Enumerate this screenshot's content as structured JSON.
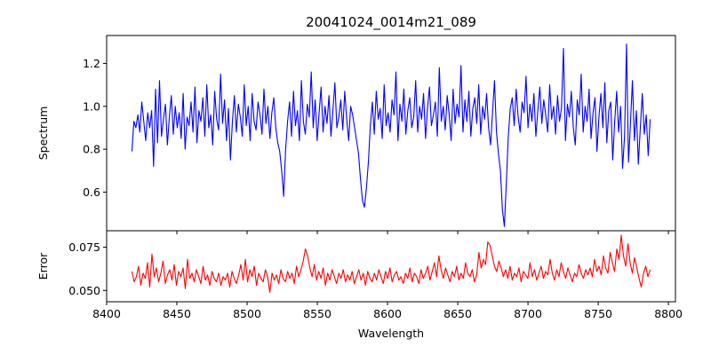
{
  "figure": {
    "title": "20041024_0014m21_089"
  },
  "chart_data": [
    {
      "type": "line",
      "panel": "top",
      "title": "20041024_0014m21_089",
      "xlabel": "",
      "ylabel": "Spectrum",
      "xlim": [
        8400,
        8805
      ],
      "ylim": [
        0.42,
        1.33
      ],
      "x_ticks": [
        8400,
        8450,
        8500,
        8550,
        8600,
        8650,
        8700,
        8750,
        8800
      ],
      "y_ticks": [
        0.6,
        0.8,
        1.0,
        1.2
      ],
      "y_tick_labels": [
        "0.6",
        "0.8",
        "1.0",
        "1.2"
      ],
      "grid": false,
      "legend": "none",
      "series": [
        {
          "color": "#0000ff",
          "x_start": 8418,
          "x_end": 8787,
          "values": [
            0.79,
            0.93,
            0.9,
            0.96,
            0.88,
            1.02,
            0.93,
            0.84,
            0.97,
            0.9,
            0.98,
            0.72,
            1.08,
            0.83,
            1.12,
            0.86,
            0.94,
            1.01,
            0.82,
            0.95,
            1.05,
            0.87,
            1.0,
            0.9,
            0.97,
            0.85,
            1.06,
            0.8,
            0.95,
            0.91,
            1.02,
            0.88,
            1.09,
            0.83,
            0.98,
            0.93,
            1.04,
            0.86,
            1.1,
            0.9,
            0.96,
            0.82,
            1.07,
            0.94,
            0.89,
            1.15,
            0.92,
            1.03,
            0.84,
            0.99,
            0.75,
            0.93,
            1.05,
            0.88,
            1.01,
            0.95,
            0.86,
            1.1,
            0.91,
            1.0,
            0.84,
            1.06,
            0.93,
            0.89,
            1.02,
            0.96,
            0.87,
            1.08,
            0.92,
            1.0,
            0.85,
            0.97,
            1.04,
            0.9,
            0.83,
            0.79,
            0.7,
            0.58,
            0.8,
            0.93,
            1.02,
            0.86,
            1.07,
            0.91,
            0.98,
            0.84,
            1.12,
            0.93,
            0.87,
            1.01,
            0.95,
            1.16,
            0.9,
            1.03,
            0.84,
            0.97,
            1.09,
            0.88,
            1.0,
            0.92,
            1.05,
            0.86,
            0.98,
            1.11,
            0.9,
            0.95,
            1.03,
            0.89,
            1.07,
            0.94,
            0.84,
            1.0,
            0.96,
            0.9,
            0.84,
            0.78,
            0.66,
            0.56,
            0.53,
            0.62,
            0.74,
            0.91,
            1.02,
            0.87,
            1.07,
            0.94,
            0.99,
            0.85,
            1.1,
            0.91,
            0.97,
            0.88,
            1.03,
            0.96,
            1.16,
            0.84,
            1.01,
            0.93,
            1.08,
            0.87,
            0.98,
            1.04,
            0.9,
            0.95,
            1.12,
            0.88,
            1.0,
            0.94,
            1.06,
            0.85,
            0.99,
            1.09,
            0.91,
            0.96,
            1.02,
            0.86,
            1.18,
            0.93,
            1.0,
            0.89,
            1.05,
            0.96,
            0.84,
            1.08,
            0.92,
            1.01,
            0.95,
            1.19,
            0.88,
            1.03,
            0.93,
            1.07,
            0.86,
            0.99,
            1.04,
            0.92,
            1.1,
            0.87,
            1.0,
            0.94,
            1.06,
            0.9,
            0.82,
            0.97,
            1.12,
            0.88,
            0.78,
            0.7,
            0.52,
            0.44,
            0.64,
            0.86,
            0.99,
            1.04,
            0.91,
            1.08,
            0.95,
            0.88,
            1.02,
            0.97,
            1.14,
            0.9,
            1.01,
            0.93,
            1.06,
            0.86,
            0.98,
            1.09,
            0.92,
            1.03,
            0.96,
            0.88,
            1.1,
            0.94,
            1.0,
            0.87,
            1.05,
            0.93,
            0.99,
            1.27,
            0.84,
            1.01,
            0.95,
            1.07,
            0.9,
            0.82,
            1.03,
            0.96,
            1.15,
            0.88,
            1.0,
            0.93,
            1.08,
            0.85,
            0.97,
            1.04,
            0.79,
            0.95,
            1.06,
            0.9,
            1.11,
            0.83,
            0.98,
            1.02,
            0.75,
            0.93,
            1.07,
            0.88,
            1.0,
            0.71,
            0.86,
            1.29,
            0.74,
            0.92,
            1.12,
            0.84,
            0.98,
            0.73,
            0.9,
            1.06,
            0.87,
            0.96,
            0.77,
            0.94
          ]
        }
      ]
    },
    {
      "type": "line",
      "panel": "bottom",
      "xlabel": "Wavelength",
      "ylabel": "Error",
      "xlim": [
        8400,
        8805
      ],
      "ylim": [
        0.0435,
        0.0845
      ],
      "x_ticks": [
        8400,
        8450,
        8500,
        8550,
        8600,
        8650,
        8700,
        8750,
        8800
      ],
      "x_tick_labels": [
        "8400",
        "8450",
        "8500",
        "8550",
        "8600",
        "8650",
        "8700",
        "8750",
        "8800"
      ],
      "y_ticks": [
        0.05,
        0.075
      ],
      "y_tick_labels": [
        "0.050",
        "0.075"
      ],
      "grid": false,
      "legend": "none",
      "series": [
        {
          "color": "#ff0000",
          "x_start": 8418,
          "x_end": 8787,
          "values": [
            0.061,
            0.055,
            0.058,
            0.064,
            0.053,
            0.06,
            0.057,
            0.066,
            0.052,
            0.071,
            0.058,
            0.063,
            0.055,
            0.06,
            0.067,
            0.054,
            0.059,
            0.062,
            0.056,
            0.065,
            0.053,
            0.061,
            0.058,
            0.063,
            0.051,
            0.068,
            0.057,
            0.06,
            0.055,
            0.062,
            0.058,
            0.054,
            0.064,
            0.056,
            0.059,
            0.053,
            0.061,
            0.057,
            0.055,
            0.06,
            0.053,
            0.058,
            0.056,
            0.06,
            0.052,
            0.061,
            0.057,
            0.054,
            0.059,
            0.065,
            0.056,
            0.068,
            0.055,
            0.062,
            0.058,
            0.064,
            0.053,
            0.06,
            0.057,
            0.055,
            0.062,
            0.058,
            0.049,
            0.06,
            0.056,
            0.059,
            0.054,
            0.062,
            0.057,
            0.055,
            0.061,
            0.057,
            0.06,
            0.054,
            0.064,
            0.058,
            0.062,
            0.067,
            0.074,
            0.07,
            0.063,
            0.058,
            0.065,
            0.056,
            0.061,
            0.057,
            0.063,
            0.053,
            0.06,
            0.056,
            0.062,
            0.058,
            0.054,
            0.06,
            0.057,
            0.062,
            0.055,
            0.059,
            0.056,
            0.061,
            0.054,
            0.058,
            0.062,
            0.056,
            0.06,
            0.053,
            0.061,
            0.057,
            0.055,
            0.06,
            0.056,
            0.062,
            0.058,
            0.054,
            0.061,
            0.057,
            0.063,
            0.055,
            0.059,
            0.061,
            0.056,
            0.058,
            0.054,
            0.06,
            0.057,
            0.063,
            0.055,
            0.06,
            0.058,
            0.054,
            0.062,
            0.057,
            0.06,
            0.064,
            0.056,
            0.061,
            0.066,
            0.058,
            0.07,
            0.062,
            0.057,
            0.063,
            0.059,
            0.055,
            0.061,
            0.058,
            0.064,
            0.056,
            0.06,
            0.057,
            0.066,
            0.06,
            0.058,
            0.062,
            0.055,
            0.059,
            0.072,
            0.063,
            0.068,
            0.065,
            0.078,
            0.076,
            0.07,
            0.064,
            0.061,
            0.067,
            0.063,
            0.058,
            0.062,
            0.057,
            0.064,
            0.056,
            0.06,
            0.058,
            0.063,
            0.055,
            0.061,
            0.059,
            0.057,
            0.066,
            0.058,
            0.062,
            0.056,
            0.06,
            0.064,
            0.057,
            0.061,
            0.059,
            0.068,
            0.06,
            0.056,
            0.062,
            0.058,
            0.066,
            0.061,
            0.057,
            0.063,
            0.059,
            0.055,
            0.06,
            0.058,
            0.065,
            0.06,
            0.057,
            0.062,
            0.059,
            0.063,
            0.058,
            0.068,
            0.061,
            0.064,
            0.059,
            0.07,
            0.063,
            0.06,
            0.072,
            0.066,
            0.061,
            0.074,
            0.068,
            0.082,
            0.07,
            0.064,
            0.077,
            0.066,
            0.06,
            0.069,
            0.063,
            0.057,
            0.052,
            0.06,
            0.064,
            0.058,
            0.062
          ]
        }
      ]
    }
  ]
}
